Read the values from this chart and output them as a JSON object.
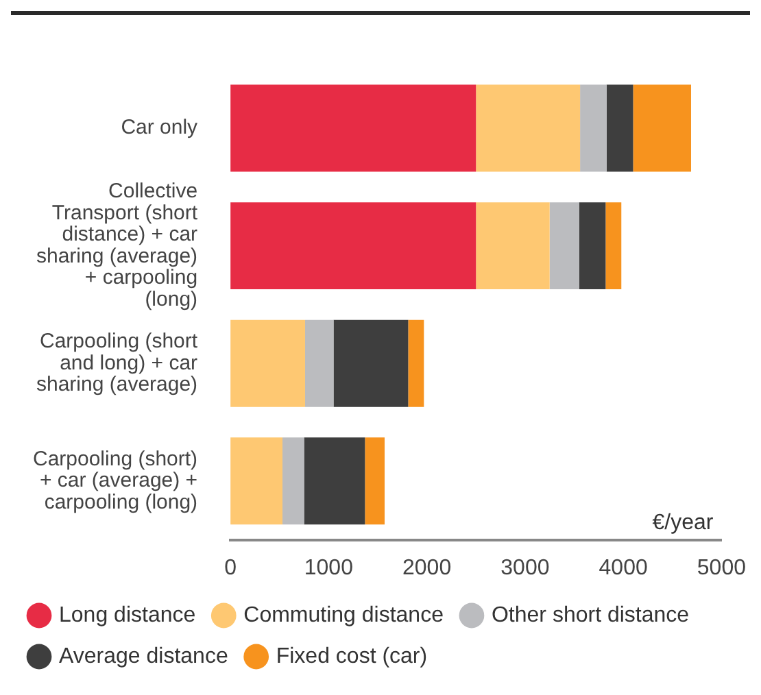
{
  "chart_data": {
    "type": "bar",
    "orientation": "horizontal",
    "stacked": true,
    "xlabel": "€/year",
    "categories": [
      "Car only",
      "Collective Transport (short distance) + car sharing (average) + carpooling (long)",
      "Carpooling (short and long) + car sharing (average)",
      "Carpooling (short) + car (average) + carpooling (long)"
    ],
    "series": [
      {
        "name": "Long distance",
        "color": "#e72c45",
        "values": [
          2500,
          2500,
          0,
          0
        ]
      },
      {
        "name": "Commuting distance",
        "color": "#fec872",
        "values": [
          1060,
          750,
          760,
          530
        ]
      },
      {
        "name": "Other short distance",
        "color": "#bbbcbf",
        "values": [
          270,
          300,
          290,
          220
        ]
      },
      {
        "name": "Average distance",
        "color": "#3e3e3e",
        "values": [
          270,
          270,
          760,
          620
        ]
      },
      {
        "name": "Fixed cost (car)",
        "color": "#f7931e",
        "values": [
          590,
          160,
          160,
          200
        ]
      }
    ],
    "xlim": [
      0,
      5000
    ],
    "xticks": [
      0,
      1000,
      2000,
      3000,
      4000,
      5000
    ],
    "grid": false,
    "legend": "bottom"
  }
}
